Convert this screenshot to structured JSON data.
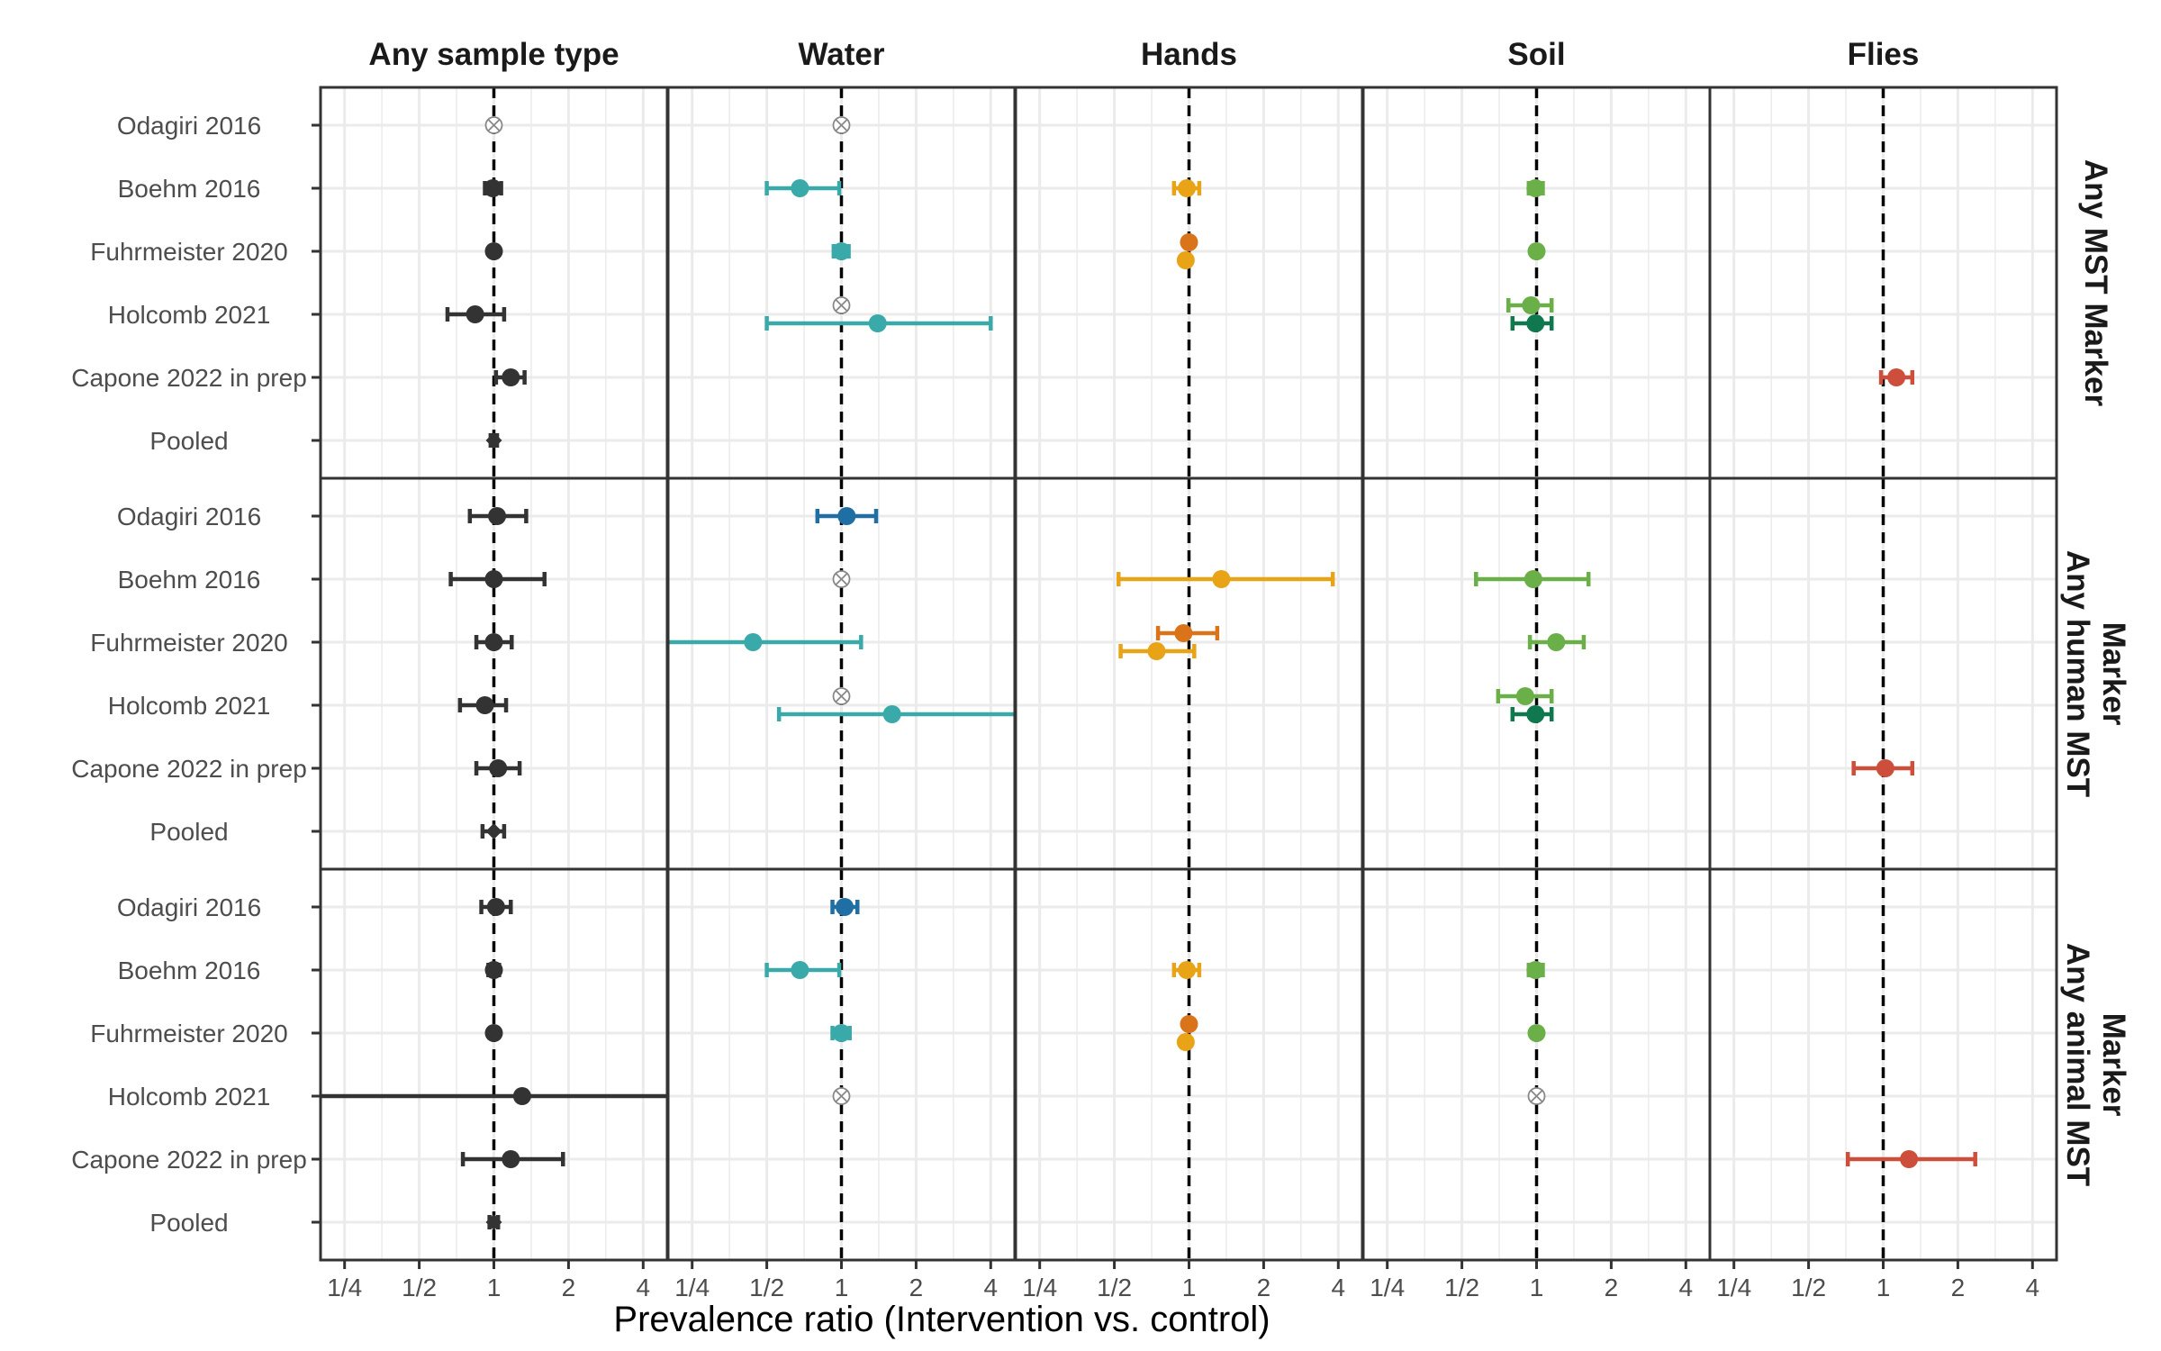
{
  "chart_data": {
    "type": "forest",
    "xlabel": "Prevalence ratio (Intervention vs. control)",
    "x_scale": "log2",
    "xlim": [
      0.2,
      5.0
    ],
    "x_ticks": [
      0.25,
      0.5,
      1,
      2,
      4
    ],
    "x_tick_labels": [
      "1/4",
      "1/2",
      "1",
      "2",
      "4"
    ],
    "reference_line": 1,
    "grid": true,
    "columns": [
      "Any sample type",
      "Water",
      "Hands",
      "Soil",
      "Flies"
    ],
    "row_panels": [
      "Any MST Marker",
      "Any human MST Marker",
      "Any animal MST Marker"
    ],
    "studies": [
      "Odagiri 2016",
      "Boehm 2016",
      "Fuhrmeister 2020",
      "Holcomb 2021",
      "Capone 2022 in prep",
      "Pooled"
    ],
    "colors": {
      "overall": "#333333",
      "water_blue": "#1f6ea4",
      "water_teal": "#3aa9a9",
      "hands_yellow": "#e8a317",
      "hands_orange": "#d9741a",
      "soil_light": "#6aaf48",
      "soil_dark": "#10784e",
      "flies": "#cd4e3a",
      "not_estimable": "#888888",
      "grid": "#ebebeb",
      "frame": "#333333"
    },
    "estimates": [
      {
        "panel": 0,
        "col": 0,
        "study": 0,
        "pr": 1.0,
        "na": true
      },
      {
        "panel": 0,
        "col": 0,
        "study": 1,
        "pr": 0.99,
        "lo": 0.92,
        "hi": 1.07,
        "color": "overall"
      },
      {
        "panel": 0,
        "col": 0,
        "study": 2,
        "pr": 1.0,
        "color": "overall"
      },
      {
        "panel": 0,
        "col": 0,
        "study": 3,
        "pr": 0.84,
        "lo": 0.65,
        "hi": 1.1,
        "color": "overall"
      },
      {
        "panel": 0,
        "col": 0,
        "study": 4,
        "pr": 1.17,
        "lo": 1.02,
        "hi": 1.33,
        "color": "overall"
      },
      {
        "panel": 0,
        "col": 0,
        "study": 5,
        "pr": 1.0,
        "lo": 0.97,
        "hi": 1.03,
        "color": "overall",
        "diamond": true
      },
      {
        "panel": 0,
        "col": 1,
        "study": 0,
        "pr": 1.0,
        "na": true
      },
      {
        "panel": 0,
        "col": 1,
        "study": 1,
        "pr": 0.68,
        "lo": 0.5,
        "hi": 0.98,
        "color": "water_teal"
      },
      {
        "panel": 0,
        "col": 1,
        "study": 2,
        "pr": 1.0,
        "lo": 0.93,
        "hi": 1.07,
        "color": "water_teal"
      },
      {
        "panel": 0,
        "col": 1,
        "study": 3,
        "pr": 1.0,
        "na": true,
        "offset": -1
      },
      {
        "panel": 0,
        "col": 1,
        "study": 3,
        "pr": 1.4,
        "lo": 0.5,
        "hi": 4.0,
        "color": "water_teal",
        "offset": 1
      },
      {
        "panel": 0,
        "col": 2,
        "study": 1,
        "pr": 0.98,
        "lo": 0.87,
        "hi": 1.1,
        "color": "hands_yellow"
      },
      {
        "panel": 0,
        "col": 2,
        "study": 2,
        "pr": 1.0,
        "color": "hands_orange",
        "offset": -1
      },
      {
        "panel": 0,
        "col": 2,
        "study": 2,
        "pr": 0.97,
        "color": "hands_yellow",
        "offset": 1
      },
      {
        "panel": 0,
        "col": 3,
        "study": 1,
        "pr": 0.99,
        "lo": 0.93,
        "hi": 1.06,
        "color": "soil_light"
      },
      {
        "panel": 0,
        "col": 3,
        "study": 2,
        "pr": 1.0,
        "color": "soil_light"
      },
      {
        "panel": 0,
        "col": 3,
        "study": 3,
        "pr": 0.95,
        "lo": 0.77,
        "hi": 1.15,
        "color": "soil_light",
        "offset": -1
      },
      {
        "panel": 0,
        "col": 3,
        "study": 3,
        "pr": 0.99,
        "lo": 0.8,
        "hi": 1.15,
        "color": "soil_dark",
        "offset": 1
      },
      {
        "panel": 0,
        "col": 4,
        "study": 4,
        "pr": 1.13,
        "lo": 0.98,
        "hi": 1.31,
        "color": "flies"
      },
      {
        "panel": 1,
        "col": 0,
        "study": 0,
        "pr": 1.03,
        "lo": 0.8,
        "hi": 1.35,
        "color": "overall"
      },
      {
        "panel": 1,
        "col": 0,
        "study": 1,
        "pr": 1.0,
        "lo": 0.67,
        "hi": 1.6,
        "color": "overall"
      },
      {
        "panel": 1,
        "col": 0,
        "study": 2,
        "pr": 1.0,
        "lo": 0.85,
        "hi": 1.18,
        "color": "overall"
      },
      {
        "panel": 1,
        "col": 0,
        "study": 3,
        "pr": 0.92,
        "lo": 0.73,
        "hi": 1.12,
        "color": "overall"
      },
      {
        "panel": 1,
        "col": 0,
        "study": 4,
        "pr": 1.04,
        "lo": 0.85,
        "hi": 1.27,
        "color": "overall"
      },
      {
        "panel": 1,
        "col": 0,
        "study": 5,
        "pr": 1.0,
        "lo": 0.9,
        "hi": 1.1,
        "color": "overall",
        "diamond": true
      },
      {
        "panel": 1,
        "col": 1,
        "study": 0,
        "pr": 1.05,
        "lo": 0.8,
        "hi": 1.38,
        "color": "water_blue"
      },
      {
        "panel": 1,
        "col": 1,
        "study": 1,
        "pr": 1.0,
        "na": true
      },
      {
        "panel": 1,
        "col": 1,
        "study": 2,
        "pr": 0.44,
        "lo": 0.2,
        "hi": 1.2,
        "color": "water_teal"
      },
      {
        "panel": 1,
        "col": 1,
        "study": 3,
        "pr": 1.0,
        "na": true,
        "offset": -1
      },
      {
        "panel": 1,
        "col": 1,
        "study": 3,
        "pr": 1.6,
        "lo": 0.56,
        "hi": 5.0,
        "color": "water_teal",
        "offset": 1
      },
      {
        "panel": 1,
        "col": 2,
        "study": 1,
        "pr": 1.35,
        "lo": 0.52,
        "hi": 3.8,
        "color": "hands_yellow"
      },
      {
        "panel": 1,
        "col": 2,
        "study": 2,
        "pr": 0.95,
        "lo": 0.75,
        "hi": 1.3,
        "color": "hands_orange",
        "offset": -1
      },
      {
        "panel": 1,
        "col": 2,
        "study": 2,
        "pr": 0.74,
        "lo": 0.53,
        "hi": 1.05,
        "color": "hands_yellow",
        "offset": 1
      },
      {
        "panel": 1,
        "col": 3,
        "study": 1,
        "pr": 0.97,
        "lo": 0.57,
        "hi": 1.62,
        "color": "soil_light"
      },
      {
        "panel": 1,
        "col": 3,
        "study": 2,
        "pr": 1.2,
        "lo": 0.94,
        "hi": 1.55,
        "color": "soil_light"
      },
      {
        "panel": 1,
        "col": 3,
        "study": 3,
        "pr": 0.9,
        "lo": 0.7,
        "hi": 1.15,
        "color": "soil_light",
        "offset": -1
      },
      {
        "panel": 1,
        "col": 3,
        "study": 3,
        "pr": 0.99,
        "lo": 0.8,
        "hi": 1.15,
        "color": "soil_dark",
        "offset": 1
      },
      {
        "panel": 1,
        "col": 4,
        "study": 4,
        "pr": 1.02,
        "lo": 0.76,
        "hi": 1.31,
        "color": "flies"
      },
      {
        "panel": 2,
        "col": 0,
        "study": 0,
        "pr": 1.02,
        "lo": 0.89,
        "hi": 1.17,
        "color": "overall"
      },
      {
        "panel": 2,
        "col": 0,
        "study": 1,
        "pr": 1.0,
        "lo": 0.95,
        "hi": 1.05,
        "color": "overall"
      },
      {
        "panel": 2,
        "col": 0,
        "study": 2,
        "pr": 1.0,
        "color": "overall"
      },
      {
        "panel": 2,
        "col": 0,
        "study": 3,
        "pr": 1.3,
        "lo": 0.2,
        "hi": 5.0,
        "color": "overall"
      },
      {
        "panel": 2,
        "col": 0,
        "study": 4,
        "pr": 1.17,
        "lo": 0.75,
        "hi": 1.9,
        "color": "overall"
      },
      {
        "panel": 2,
        "col": 0,
        "study": 5,
        "pr": 1.0,
        "lo": 0.96,
        "hi": 1.04,
        "color": "overall",
        "diamond": true
      },
      {
        "panel": 2,
        "col": 1,
        "study": 0,
        "pr": 1.03,
        "lo": 0.92,
        "hi": 1.16,
        "color": "water_blue"
      },
      {
        "panel": 2,
        "col": 1,
        "study": 1,
        "pr": 0.68,
        "lo": 0.5,
        "hi": 0.98,
        "color": "water_teal"
      },
      {
        "panel": 2,
        "col": 1,
        "study": 2,
        "pr": 1.0,
        "lo": 0.92,
        "hi": 1.08,
        "color": "water_teal"
      },
      {
        "panel": 2,
        "col": 1,
        "study": 3,
        "pr": 1.0,
        "na": true
      },
      {
        "panel": 2,
        "col": 2,
        "study": 1,
        "pr": 0.98,
        "lo": 0.87,
        "hi": 1.1,
        "color": "hands_yellow"
      },
      {
        "panel": 2,
        "col": 2,
        "study": 2,
        "pr": 1.0,
        "color": "hands_orange",
        "offset": -1
      },
      {
        "panel": 2,
        "col": 2,
        "study": 2,
        "pr": 0.97,
        "color": "hands_yellow",
        "offset": 1
      },
      {
        "panel": 2,
        "col": 3,
        "study": 1,
        "pr": 0.99,
        "lo": 0.93,
        "hi": 1.06,
        "color": "soil_light"
      },
      {
        "panel": 2,
        "col": 3,
        "study": 2,
        "pr": 1.0,
        "color": "soil_light"
      },
      {
        "panel": 2,
        "col": 3,
        "study": 3,
        "pr": 1.0,
        "na": true
      },
      {
        "panel": 2,
        "col": 4,
        "study": 4,
        "pr": 1.27,
        "lo": 0.72,
        "hi": 2.35,
        "color": "flies"
      }
    ]
  }
}
